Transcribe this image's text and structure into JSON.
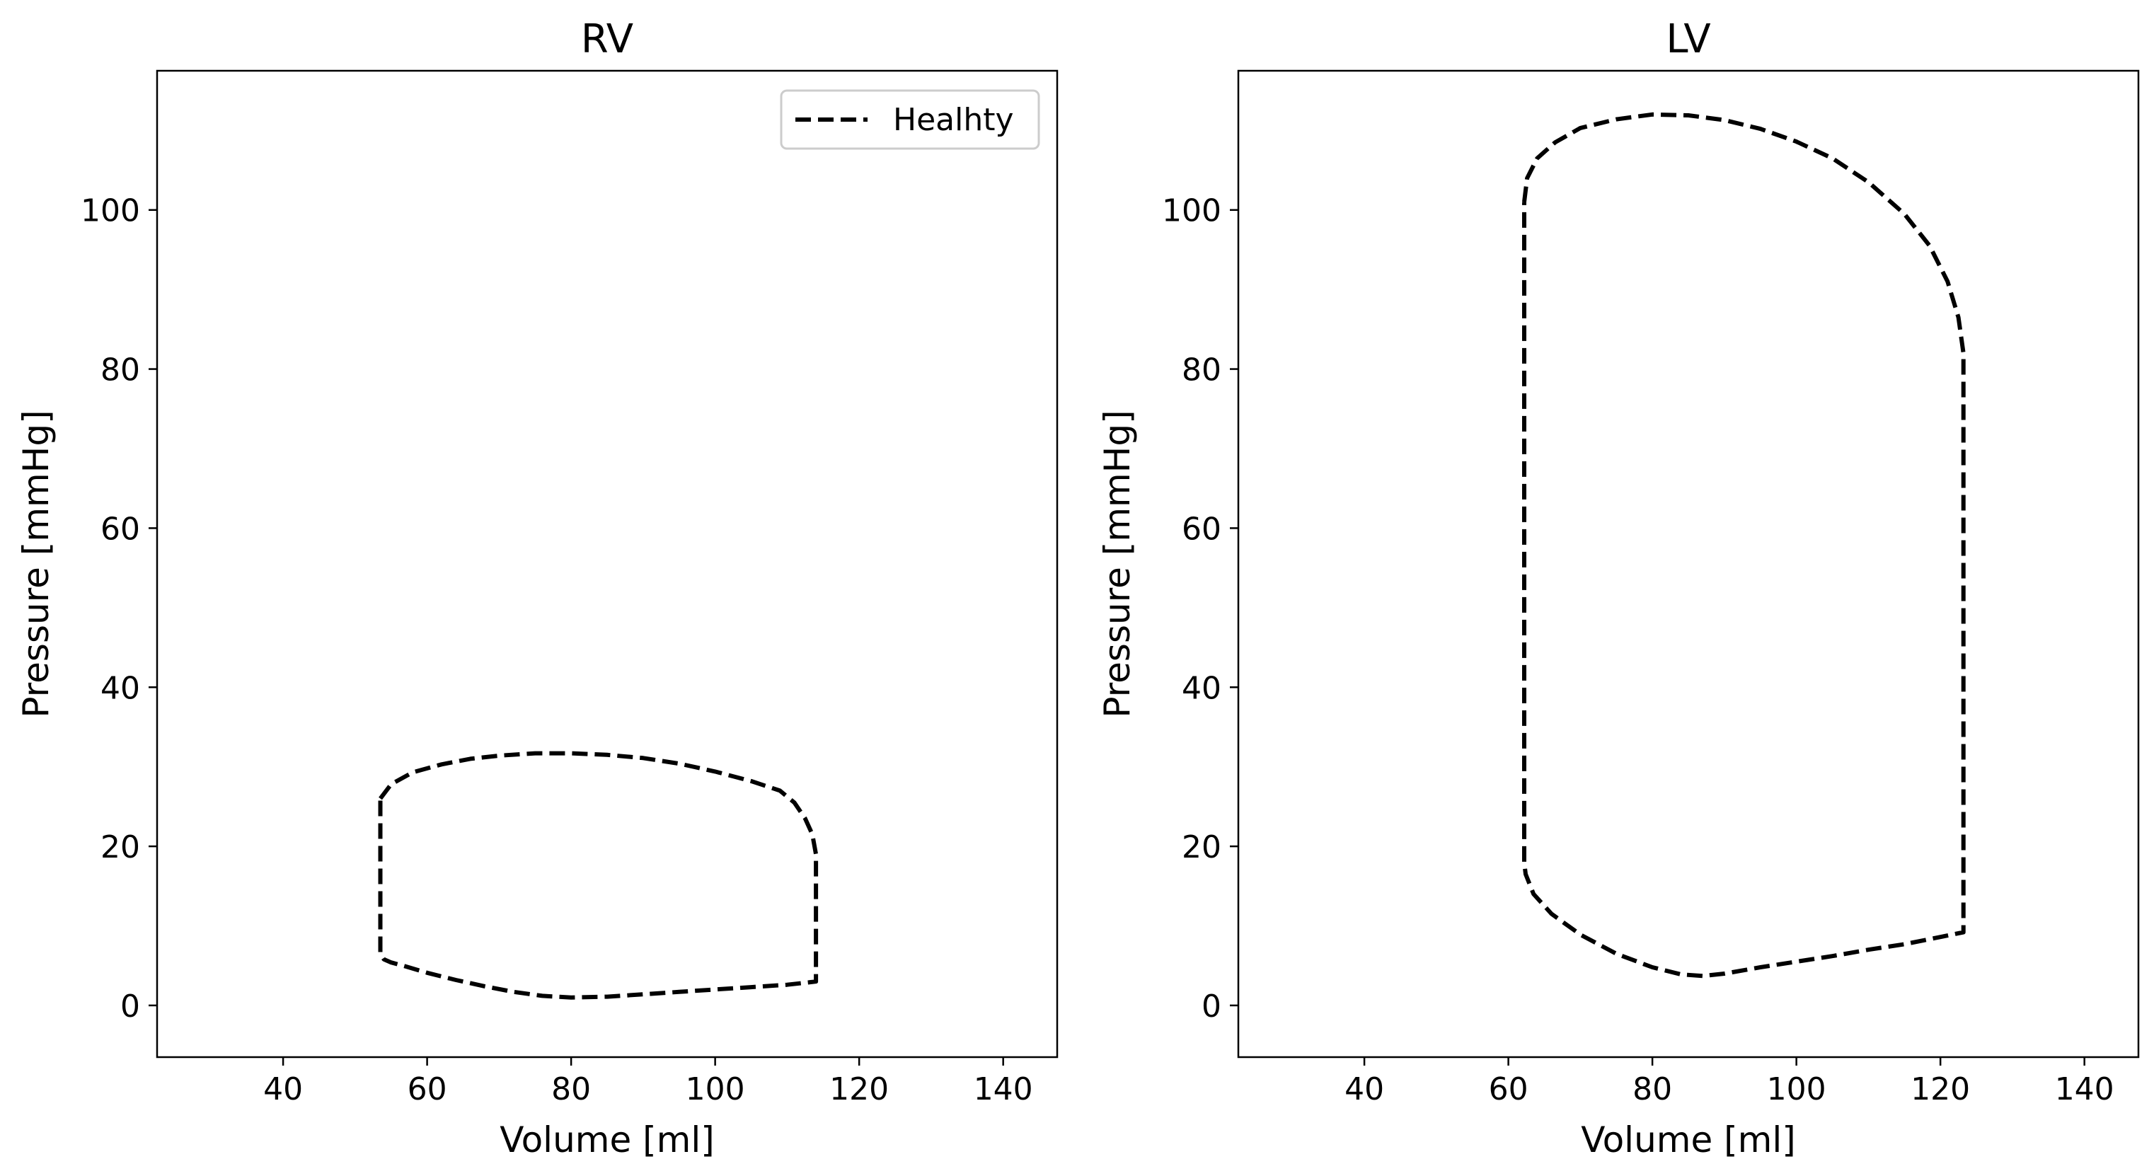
{
  "chart_data": [
    {
      "type": "line",
      "title": "RV",
      "xlabel": "Volume [ml]",
      "ylabel": "Pressure [mmHg]",
      "xlim": [
        22.5,
        147.5
      ],
      "ylim": [
        -6.5,
        117.5
      ],
      "xticks": [
        "40",
        "60",
        "80",
        "100",
        "120",
        "140"
      ],
      "yticks": [
        "0",
        "20",
        "40",
        "60",
        "80",
        "100"
      ],
      "grid": false,
      "legend": {
        "placement": "top-right",
        "entries": [
          "Healhty"
        ]
      },
      "series": [
        {
          "name": "Healhty",
          "color": "#000000",
          "style": "dashed",
          "points": [
            [
              53.5,
              26
            ],
            [
              55,
              27.8
            ],
            [
              58,
              29.3
            ],
            [
              62,
              30.3
            ],
            [
              66,
              31
            ],
            [
              70,
              31.4
            ],
            [
              75,
              31.7
            ],
            [
              80,
              31.7
            ],
            [
              85,
              31.5
            ],
            [
              90,
              31.1
            ],
            [
              95,
              30.4
            ],
            [
              100,
              29.4
            ],
            [
              105,
              28.2
            ],
            [
              109,
              27
            ],
            [
              111,
              25.5
            ],
            [
              112.5,
              23.5
            ],
            [
              113.5,
              21.5
            ],
            [
              114,
              19
            ],
            [
              114,
              3
            ],
            [
              110,
              2.6
            ],
            [
              105,
              2.3
            ],
            [
              100,
              2.0
            ],
            [
              95,
              1.7
            ],
            [
              90,
              1.4
            ],
            [
              85,
              1.1
            ],
            [
              80,
              1.0
            ],
            [
              76,
              1.2
            ],
            [
              72,
              1.7
            ],
            [
              68,
              2.4
            ],
            [
              64,
              3.2
            ],
            [
              60,
              4.1
            ],
            [
              57,
              4.9
            ],
            [
              55,
              5.4
            ],
            [
              54,
              5.8
            ],
            [
              53.5,
              6.5
            ],
            [
              53.5,
              26
            ]
          ]
        }
      ]
    },
    {
      "type": "line",
      "title": "LV",
      "xlabel": "Volume [ml]",
      "ylabel": "Pressure [mmHg]",
      "xlim": [
        22.5,
        147.5
      ],
      "ylim": [
        -6.5,
        117.5
      ],
      "xticks": [
        "40",
        "60",
        "80",
        "100",
        "120",
        "140"
      ],
      "yticks": [
        "0",
        "20",
        "40",
        "60",
        "80",
        "100"
      ],
      "grid": false,
      "series": [
        {
          "name": "",
          "color": "#000000",
          "style": "dashed",
          "points": [
            [
              62.2,
              101
            ],
            [
              62.6,
              104
            ],
            [
              64,
              106.5
            ],
            [
              66.5,
              108.5
            ],
            [
              70,
              110.3
            ],
            [
              75,
              111.4
            ],
            [
              80,
              112
            ],
            [
              85,
              111.9
            ],
            [
              90,
              111.3
            ],
            [
              95,
              110.2
            ],
            [
              100,
              108.6
            ],
            [
              105,
              106.5
            ],
            [
              110,
              103.5
            ],
            [
              115,
              99.5
            ],
            [
              118.5,
              95.5
            ],
            [
              121,
              91
            ],
            [
              122.5,
              86.5
            ],
            [
              123.2,
              82
            ],
            [
              123.2,
              9.2
            ],
            [
              120,
              8.6
            ],
            [
              115,
              7.7
            ],
            [
              110,
              7.0
            ],
            [
              105,
              6.2
            ],
            [
              100,
              5.5
            ],
            [
              95,
              4.8
            ],
            [
              90,
              4.0
            ],
            [
              87,
              3.7
            ],
            [
              84,
              3.9
            ],
            [
              80,
              4.8
            ],
            [
              75,
              6.5
            ],
            [
              70,
              8.9
            ],
            [
              66,
              11.5
            ],
            [
              63.5,
              14
            ],
            [
              62.4,
              16.5
            ],
            [
              62.2,
              18
            ],
            [
              62.2,
              101
            ]
          ]
        }
      ]
    }
  ]
}
